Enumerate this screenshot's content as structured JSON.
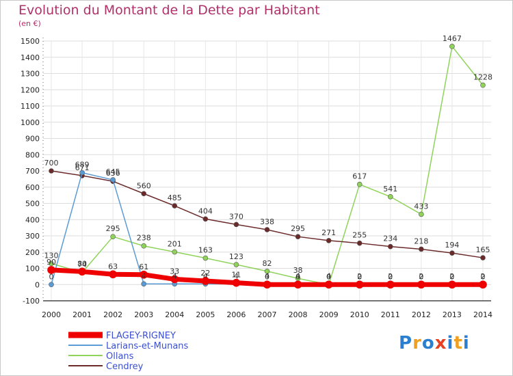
{
  "title": "Evolution du Montant de la Dette par Habitant",
  "subtitle": "(en €)",
  "logo": {
    "text": "Proxiti",
    "letters": [
      "P",
      "r",
      "o",
      "x",
      "i",
      "t",
      "i"
    ],
    "colors": [
      "#2a7fd0",
      "#f0a020",
      "#2a7fd0",
      "#e84020",
      "#2a7fd0",
      "#f0a020",
      "#2a7fd0"
    ]
  },
  "chart_data": {
    "type": "line",
    "title": "Evolution du Montant de la Dette par Habitant",
    "subtitle": "(en €)",
    "x": [
      2000,
      2001,
      2002,
      2003,
      2004,
      2005,
      2006,
      2007,
      2008,
      2009,
      2010,
      2011,
      2012,
      2013,
      2014
    ],
    "ylim": [
      -100,
      1500
    ],
    "yticks": [
      -100,
      0,
      100,
      200,
      300,
      400,
      500,
      600,
      700,
      800,
      900,
      1000,
      1100,
      1200,
      1300,
      1400,
      1500
    ],
    "grid": true,
    "legend_position": "bottom-left",
    "series": [
      {
        "name": "FLAGEY-RIGNEY",
        "color": "#ee0000",
        "values": [
          90,
          80,
          63,
          61,
          33,
          22,
          11,
          0,
          0,
          0,
          0,
          0,
          0,
          0,
          0
        ],
        "labels": [
          "90",
          "80",
          "63",
          "61",
          "33",
          "22",
          "11",
          "0",
          "0",
          "0",
          "0",
          "0",
          "0",
          "0",
          "0"
        ]
      },
      {
        "name": "Larians-et-Munans",
        "color": "#5b9bd5",
        "values": [
          0,
          689,
          645,
          4,
          4,
          4,
          4,
          4,
          4,
          4,
          2,
          2,
          2,
          2,
          2
        ],
        "labels": [
          "0",
          "689",
          "645",
          "4",
          "4",
          "4",
          "4",
          "4",
          "4",
          "4",
          "2",
          "2",
          "2",
          "2",
          "2"
        ]
      },
      {
        "name": "Ollans",
        "color": "#8fd35a",
        "values": [
          130,
          74,
          295,
          238,
          201,
          163,
          123,
          82,
          38,
          0,
          617,
          541,
          433,
          1467,
          1228
        ],
        "labels": [
          "130",
          "74",
          "295",
          "238",
          "201",
          "163",
          "123",
          "82",
          "38",
          "0",
          "617",
          "541",
          "433",
          "1467",
          "1228"
        ]
      },
      {
        "name": "Cendrey",
        "color": "#6b2a2a",
        "values": [
          700,
          671,
          636,
          560,
          485,
          404,
          370,
          338,
          295,
          271,
          255,
          234,
          218,
          194,
          165
        ],
        "labels": [
          "700",
          "671",
          "636",
          "560",
          "485",
          "404",
          "370",
          "338",
          "295",
          "271",
          "255",
          "234",
          "218",
          "194",
          "165"
        ]
      }
    ]
  }
}
